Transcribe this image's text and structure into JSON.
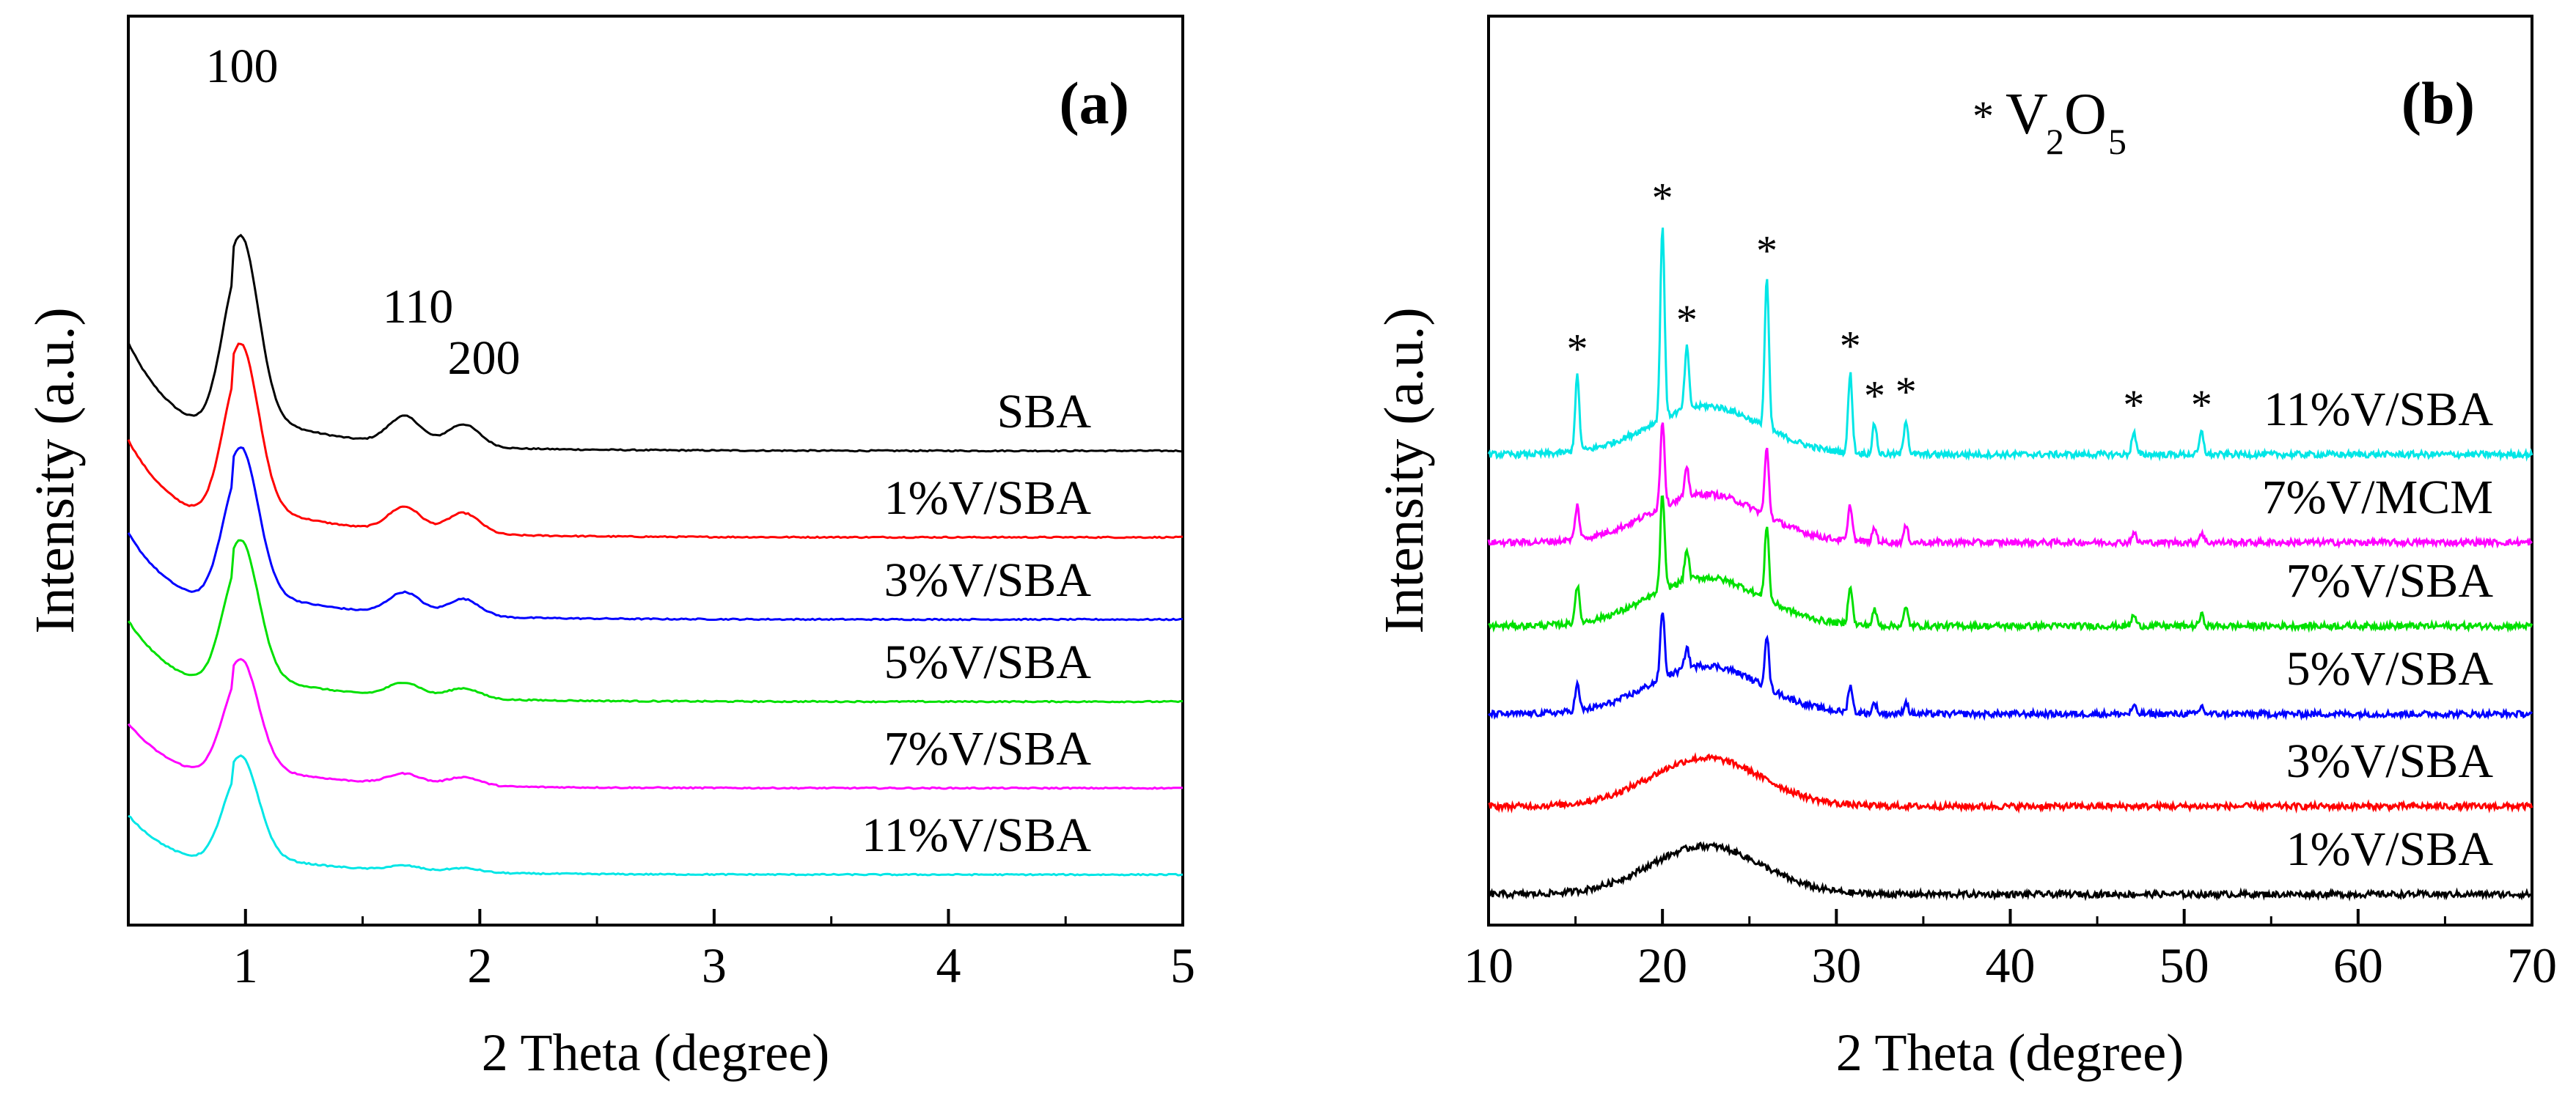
{
  "colors": {
    "black": "#000000",
    "red": "#ff0000",
    "blue": "#0000ff",
    "green": "#00e000",
    "magenta": "#ff00ff",
    "cyan": "#00e6e6"
  },
  "chart_data": [
    {
      "type": "line",
      "panel_label": "(a)",
      "xlabel": "2 Theta (degree)",
      "ylabel": "Intensity (a.u.)",
      "xlim": [
        0.5,
        5
      ],
      "xticks": [
        "1",
        "2",
        "3",
        "4",
        "5"
      ],
      "xtick_values": [
        1,
        2,
        3,
        4,
        5
      ],
      "peak_labels": [
        {
          "text": "100",
          "x": 0.98
        },
        {
          "text": "110",
          "x": 1.68
        },
        {
          "text": "200",
          "x": 1.95
        }
      ],
      "series": [
        {
          "name": "SBA",
          "color": "#000000",
          "baseline": 5.0,
          "scale": 1.0,
          "peak_110": 0.32,
          "peak_200": 0.26
        },
        {
          "name": "1%V/SBA",
          "color": "#ff0000",
          "baseline": 4.0,
          "scale": 0.9,
          "peak_110": 0.28,
          "peak_200": 0.24
        },
        {
          "name": "3%V/SBA",
          "color": "#0000ff",
          "baseline": 3.05,
          "scale": 0.8,
          "peak_110": 0.25,
          "peak_200": 0.2
        },
        {
          "name": "5%V/SBA",
          "color": "#00e000",
          "baseline": 2.1,
          "scale": 0.75,
          "peak_110": 0.16,
          "peak_200": 0.12
        },
        {
          "name": "7%V/SBA",
          "color": "#ff00ff",
          "baseline": 1.1,
          "scale": 0.6,
          "peak_110": 0.12,
          "peak_200": 0.1
        },
        {
          "name": "11%V/SBA",
          "color": "#00e6e6",
          "baseline": 0.1,
          "scale": 0.55,
          "peak_110": 0.06,
          "peak_200": 0.05
        }
      ]
    },
    {
      "type": "line",
      "panel_label": "(b)",
      "xlabel": "2 Theta (degree)",
      "ylabel": "Intensity (a.u.)",
      "xlim": [
        10,
        70
      ],
      "xticks": [
        "10",
        "20",
        "30",
        "40",
        "50",
        "60",
        "70"
      ],
      "xtick_values": [
        10,
        20,
        30,
        40,
        50,
        60,
        70
      ],
      "legend_marker": "*",
      "legend_text": "V",
      "legend_sub1": "2",
      "legend_mid": "O",
      "legend_sub2": "5",
      "v2o5_peaks": [
        15.1,
        20.0,
        21.4,
        26.0,
        30.8,
        32.2,
        34.0,
        47.1,
        51.0
      ],
      "series": [
        {
          "name": "11%V/SBA",
          "color": "#00e6e6",
          "baseline": 5.0,
          "peak_scale": 1.0
        },
        {
          "name": "7%V/MCM",
          "color": "#ff00ff",
          "baseline": 4.0,
          "peak_scale": 0.45
        },
        {
          "name": "7%V/SBA",
          "color": "#00e000",
          "baseline": 3.05,
          "peak_scale": 0.5
        },
        {
          "name": "5%V/SBA",
          "color": "#0000ff",
          "baseline": 2.05,
          "peak_scale": 0.35
        },
        {
          "name": "3%V/SBA",
          "color": "#ff0000",
          "baseline": 1.0,
          "peak_scale": 0.0
        },
        {
          "name": "1%V/SBA",
          "color": "#000000",
          "baseline": 0.0,
          "peak_scale": 0.0
        }
      ]
    }
  ]
}
